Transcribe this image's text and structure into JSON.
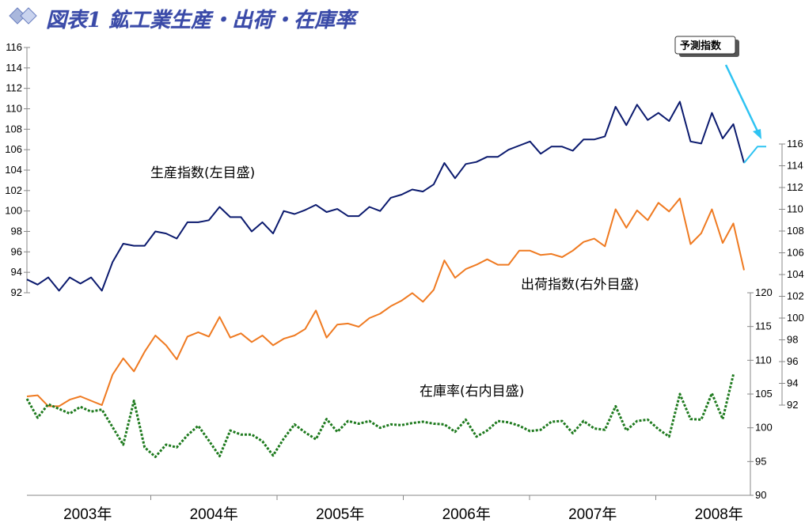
{
  "title": "図表1 鉱工業生産・出荷・在庫率",
  "callout": "予測指数",
  "colors": {
    "production": "#0b1a6e",
    "shipments": "#ef7a21",
    "inventory": "#1e7a1e",
    "forecast": "#2ec3f2",
    "title": "#3a4aa8"
  },
  "chart_data": {
    "type": "line",
    "x_labels": [
      "2003年",
      "2004年",
      "2005年",
      "2006年",
      "2007年",
      "2008年"
    ],
    "grid": false,
    "axes": {
      "left": {
        "ticks": [
          "92",
          "94",
          "96",
          "98",
          "100",
          "102",
          "104",
          "106",
          "108",
          "110",
          "112",
          "114",
          "116"
        ],
        "ylim": [
          92,
          116
        ],
        "label": ""
      },
      "right_outer": {
        "ticks": [
          "92",
          "94",
          "96",
          "98",
          "100",
          "102",
          "104",
          "106",
          "108",
          "110",
          "112",
          "114",
          "116"
        ],
        "ylim": [
          92,
          116
        ],
        "label": ""
      },
      "right_inner": {
        "ticks": [
          "90",
          "95",
          "100",
          "105",
          "110",
          "115",
          "120"
        ],
        "ylim": [
          90,
          120
        ],
        "label": ""
      }
    },
    "series": [
      {
        "name": "生産指数(左目盛)",
        "axis": "left",
        "values": [
          93.3,
          92.8,
          93.5,
          92.2,
          93.5,
          92.9,
          93.5,
          92.2,
          95.0,
          96.8,
          96.6,
          96.6,
          98.0,
          97.8,
          97.3,
          98.9,
          98.9,
          99.1,
          100.4,
          99.4,
          99.4,
          98.0,
          98.9,
          97.8,
          100.0,
          99.7,
          100.1,
          100.6,
          99.9,
          100.2,
          99.5,
          99.5,
          100.4,
          100.0,
          101.3,
          101.6,
          102.1,
          101.9,
          102.6,
          104.7,
          103.2,
          104.6,
          104.8,
          105.3,
          105.3,
          106.0,
          106.4,
          106.8,
          105.6,
          106.3,
          106.3,
          105.9,
          107.0,
          107.0,
          107.3,
          110.2,
          108.4,
          110.4,
          108.9,
          109.6,
          108.8,
          110.7,
          106.8,
          106.6,
          109.6,
          107.1,
          108.5,
          104.7
        ]
      },
      {
        "name": "出荷指数(右外目盛)",
        "axis": "right_outer",
        "values": [
          92.8,
          92.9,
          91.9,
          91.9,
          92.5,
          92.8,
          92.4,
          92.0,
          94.8,
          96.3,
          95.1,
          96.9,
          98.4,
          97.5,
          96.2,
          98.3,
          98.7,
          98.3,
          100.1,
          98.2,
          98.6,
          97.8,
          98.4,
          97.5,
          98.1,
          98.4,
          99.0,
          100.7,
          98.2,
          99.4,
          99.5,
          99.2,
          100.0,
          100.4,
          101.1,
          101.6,
          102.3,
          101.5,
          102.6,
          105.3,
          103.7,
          104.5,
          104.9,
          105.4,
          104.9,
          104.9,
          106.2,
          106.2,
          105.8,
          105.9,
          105.6,
          106.2,
          107.0,
          107.3,
          106.6,
          110.0,
          108.3,
          109.9,
          109.0,
          110.6,
          109.8,
          111.0,
          106.8,
          107.8,
          110.0,
          106.9,
          108.7,
          104.4
        ]
      },
      {
        "name": "在庫率(右内目盛)",
        "axis": "right_inner",
        "values": [
          104.3,
          101.5,
          103.5,
          102.8,
          102.1,
          103.1,
          102.4,
          102.7,
          100.1,
          97.5,
          104.0,
          97.1,
          95.7,
          97.5,
          97.1,
          98.9,
          100.3,
          98.1,
          95.8,
          99.6,
          99.0,
          99.0,
          98.0,
          95.9,
          98.4,
          100.5,
          99.3,
          98.3,
          101.3,
          99.4,
          101.0,
          100.6,
          101.0,
          100.0,
          100.5,
          100.4,
          100.7,
          100.9,
          100.6,
          100.5,
          99.4,
          101.2,
          98.7,
          99.6,
          101.0,
          100.8,
          100.3,
          99.5,
          99.7,
          100.9,
          101.0,
          99.2,
          101.0,
          99.9,
          99.7,
          103.2,
          99.6,
          101.0,
          101.2,
          99.8,
          98.7,
          105.0,
          101.3,
          101.2,
          105.1,
          101.3,
          107.9
        ]
      },
      {
        "name": "予測指数",
        "axis": "left",
        "values": [
          104.7,
          106.3,
          106.3
        ]
      }
    ]
  }
}
